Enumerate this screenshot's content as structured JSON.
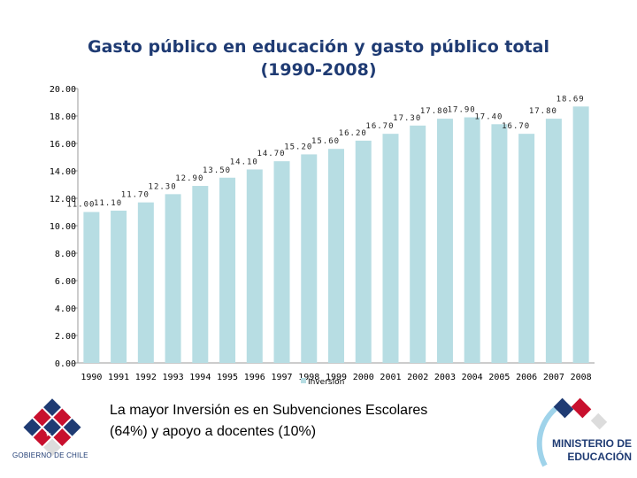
{
  "chart_data": {
    "type": "bar",
    "title_line1": "Gasto público en educación y gasto público total",
    "title_line2": "(1990-2008)",
    "categories": [
      "1990",
      "1991",
      "1992",
      "1993",
      "1994",
      "1995",
      "1996",
      "1997",
      "1998",
      "1999",
      "2000",
      "2001",
      "2002",
      "2003",
      "2004",
      "2005",
      "2006",
      "2007",
      "2008"
    ],
    "series": [
      {
        "name": "Inversión",
        "values": [
          11.0,
          11.1,
          11.7,
          12.3,
          12.9,
          13.5,
          14.1,
          14.7,
          15.2,
          15.6,
          16.2,
          16.7,
          17.3,
          17.8,
          17.9,
          17.4,
          16.7,
          17.8,
          18.69
        ]
      }
    ],
    "data_labels": [
      "11.00",
      "11.10",
      "11.70",
      "12.30",
      "12.90",
      "13.50",
      "14.10",
      "14.70",
      "15.20",
      "15.60",
      "16.20",
      "16.70",
      "17.30",
      "17.80",
      "17.90",
      "17.40",
      "16.70",
      "17.80",
      "18.69"
    ],
    "yticks": [
      "0.00",
      "2.00",
      "4.00",
      "6.00",
      "8.00",
      "10.00",
      "12.00",
      "14.00",
      "16.00",
      "18.00",
      "20.00"
    ],
    "ylim": [
      0,
      20
    ],
    "legend": "Inversión",
    "legend_position": "bottom",
    "bar_color": "#b7dde3",
    "xlabel": "",
    "ylabel": ""
  },
  "caption_line1": "La mayor Inversión es en Subvenciones Escolares",
  "caption_line2": "(64%) y apoyo a docentes (10%)",
  "gobierno_label": "GOBIERNO DE CHILE",
  "ministerio_line1": "MINISTERIO DE",
  "ministerio_line2": "EDUCACIÓN",
  "colors": {
    "title": "#1f3b73",
    "chile_red": "#c8102e",
    "chile_blue": "#1f3b73",
    "axis": "#888888"
  }
}
